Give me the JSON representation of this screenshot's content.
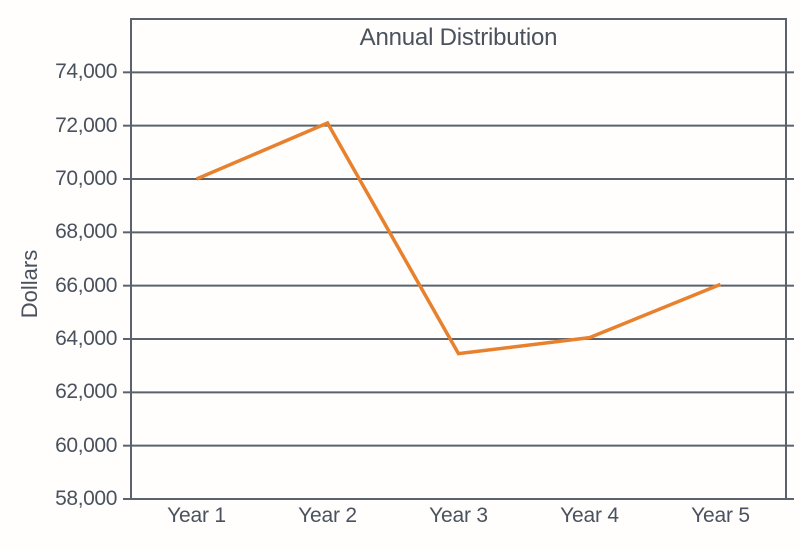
{
  "chart_data": {
    "type": "line",
    "title": "Annual Distribution",
    "ylabel": "Dollars",
    "xlabel": "",
    "categories": [
      "Year 1",
      "Year 2",
      "Year 3",
      "Year 4",
      "Year 5"
    ],
    "values": [
      70000,
      72100,
      63450,
      64050,
      66050
    ],
    "ylim": [
      58000,
      76000
    ],
    "yticks": [
      {
        "value": 74000,
        "label": "74,000"
      },
      {
        "value": 72000,
        "label": "72,000"
      },
      {
        "value": 70000,
        "label": "70,000"
      },
      {
        "value": 68000,
        "label": "68,000"
      },
      {
        "value": 66000,
        "label": "66,000"
      },
      {
        "value": 64000,
        "label": "64,000"
      },
      {
        "value": 62000,
        "label": "62,000"
      },
      {
        "value": 60000,
        "label": "60,000"
      },
      {
        "value": 58000,
        "label": "58,000"
      }
    ],
    "grid": "horizontal",
    "legend_position": "none",
    "colors": {
      "line": "#e8812e",
      "axis": "#5a626e",
      "text": "#4a525e",
      "background": "#fffefc"
    }
  }
}
